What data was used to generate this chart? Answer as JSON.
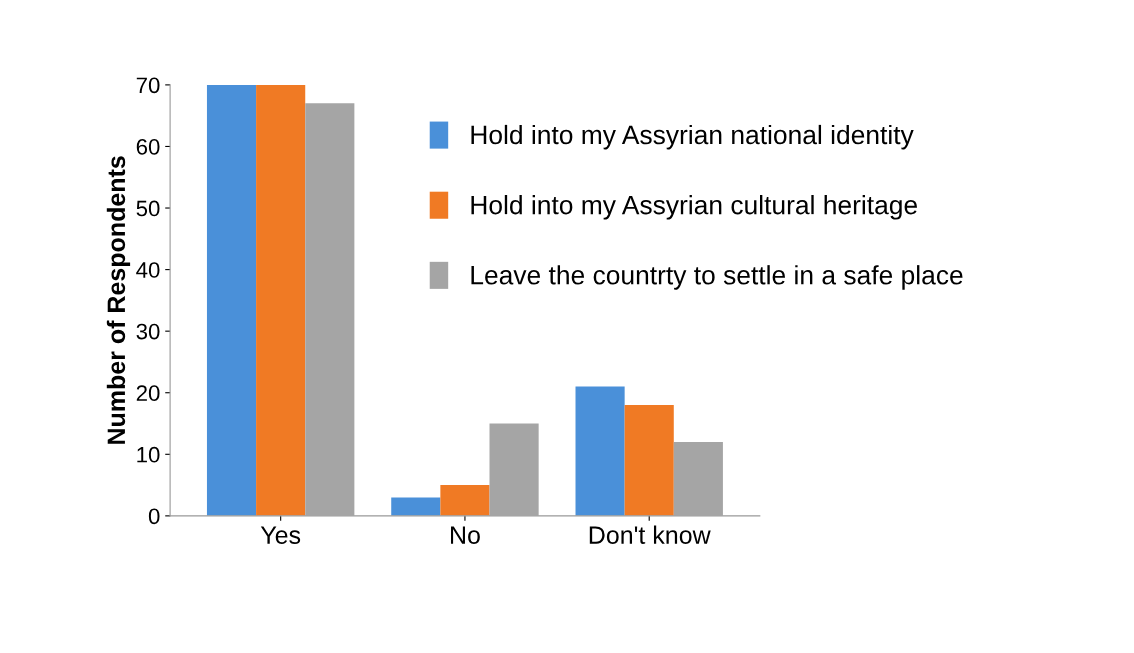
{
  "chart_data": {
    "type": "bar",
    "ylabel": "Number of Respondents",
    "categories": [
      "Yes",
      "No",
      "Don't know"
    ],
    "series": [
      {
        "name": "Hold into my Assyrian national identity",
        "color": "#4a90d9",
        "values": [
          70,
          3,
          21
        ]
      },
      {
        "name": "Hold into my Assyrian cultural heritage",
        "color": "#f07a24",
        "values": [
          70,
          5,
          18
        ]
      },
      {
        "name": "Leave the countrty to settle in a safe place",
        "color": "#a5a5a5",
        "values": [
          67,
          15,
          12
        ]
      }
    ],
    "ylim": [
      0,
      70
    ],
    "yticks": [
      0,
      10,
      20,
      30,
      40,
      50,
      60,
      70
    ],
    "grid": false,
    "legend": "top right"
  }
}
